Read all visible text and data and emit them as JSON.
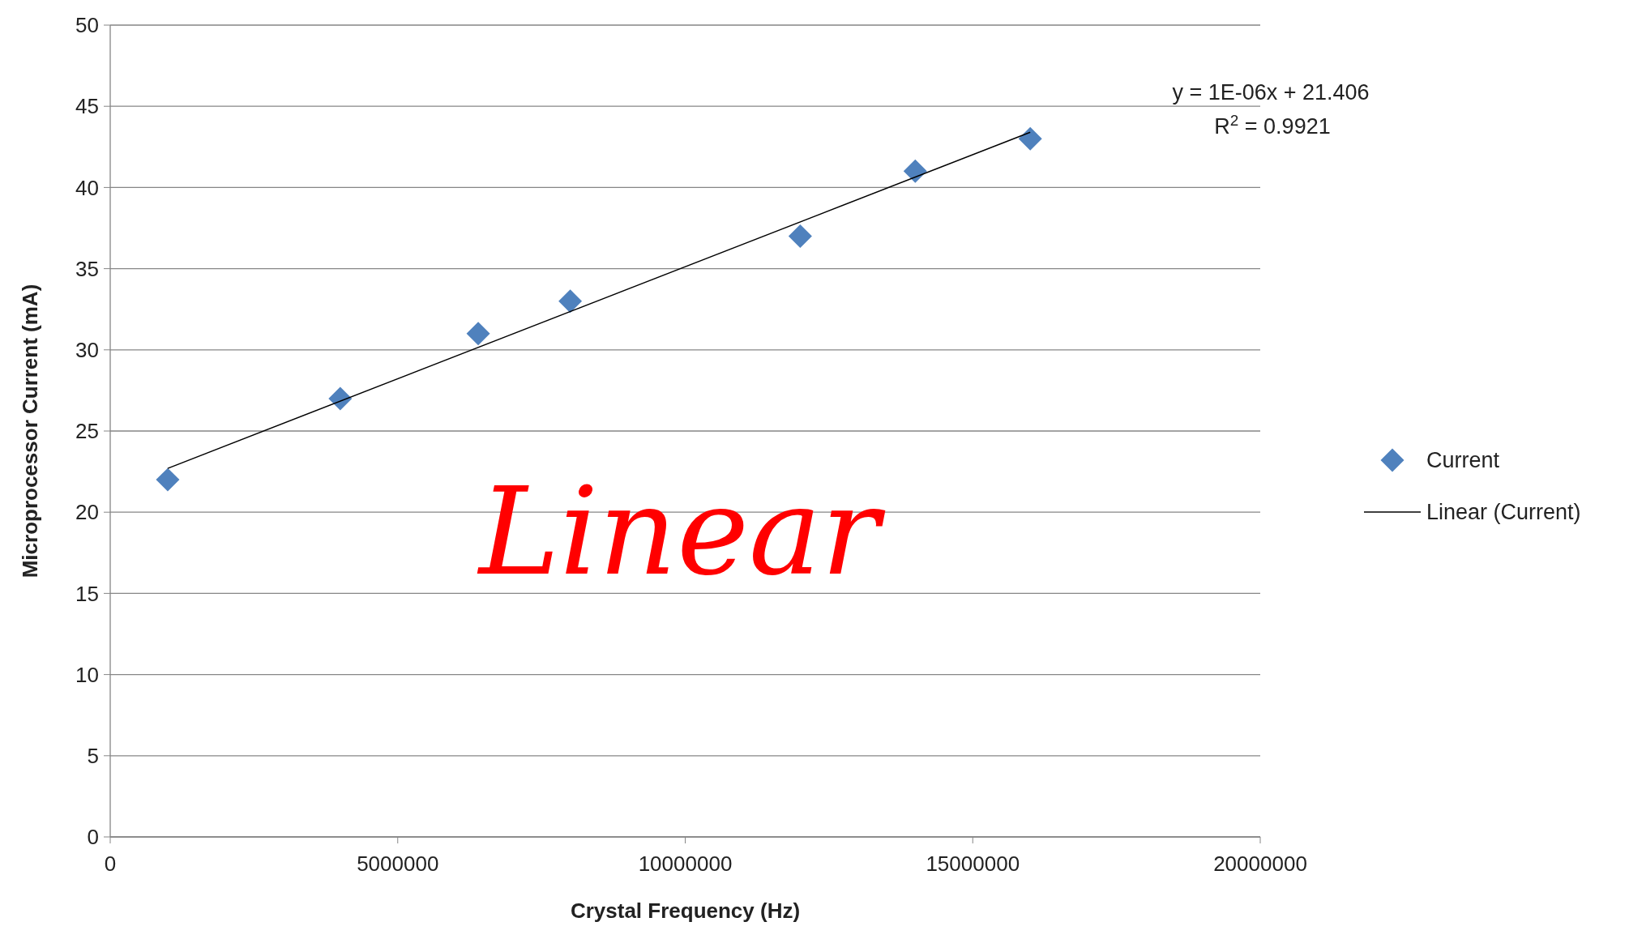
{
  "chart_data": {
    "type": "scatter",
    "xlabel": "Crystal Frequency (Hz)",
    "ylabel": "Microprocessor  Current (mA)",
    "xlim": [
      0,
      20000000
    ],
    "xticks": [
      0,
      5000000,
      10000000,
      15000000,
      20000000
    ],
    "ylim": [
      0,
      50
    ],
    "yticks": [
      0,
      5,
      10,
      15,
      20,
      25,
      30,
      35,
      40,
      45,
      50
    ],
    "grid": "y",
    "legend": "right",
    "series": [
      {
        "name": "Current",
        "marker": "diamond",
        "color": "#4f81bd",
        "x": [
          1000000,
          4000000,
          6400000,
          8000000,
          12000000,
          14000000,
          16000000
        ],
        "values": [
          22,
          27,
          31,
          33,
          37,
          41,
          43
        ]
      },
      {
        "name": "Linear (Current)",
        "type": "line",
        "color": "#000000",
        "line_style": "solid",
        "x": [
          1000000,
          16000000
        ],
        "values": [
          22.7,
          43.4
        ]
      }
    ],
    "annotations": [
      "y = 1E-06x + 21.406",
      "R$^{2}$ = 0.9921",
      "Linear"
    ]
  }
}
